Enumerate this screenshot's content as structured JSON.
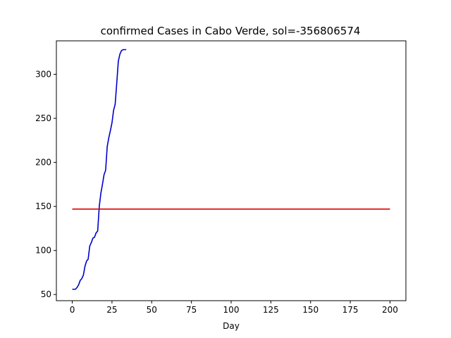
{
  "chart_data": {
    "type": "line",
    "title": "confirmed Cases in Cabo Verde, sol=-356806574",
    "xlabel": "Day",
    "ylabel": "",
    "xlim": [
      -10,
      210
    ],
    "ylim": [
      43,
      338
    ],
    "xticks": [
      0,
      25,
      50,
      75,
      100,
      125,
      150,
      175,
      200
    ],
    "yticks": [
      50,
      100,
      150,
      200,
      250,
      300
    ],
    "grid": false,
    "series": [
      {
        "color": "#0000cc",
        "x": [
          0,
          1,
          2,
          3,
          4,
          5,
          6,
          7,
          8,
          9,
          10,
          11,
          12,
          13,
          14,
          15,
          16,
          17,
          18,
          19,
          20,
          21,
          22,
          23,
          24,
          25,
          26,
          27,
          28,
          29,
          30,
          31,
          32,
          33,
          34
        ],
        "y": [
          56,
          56,
          56,
          58,
          61,
          66,
          68,
          72,
          82,
          88,
          90,
          105,
          109,
          114,
          115,
          120,
          122,
          150,
          165,
          175,
          186,
          191,
          218,
          228,
          236,
          245,
          259,
          266,
          290,
          315,
          323,
          327,
          328,
          328,
          328
        ]
      },
      {
        "color": "#dd0000",
        "x": [
          0,
          200
        ],
        "y": [
          147,
          147
        ]
      }
    ]
  }
}
